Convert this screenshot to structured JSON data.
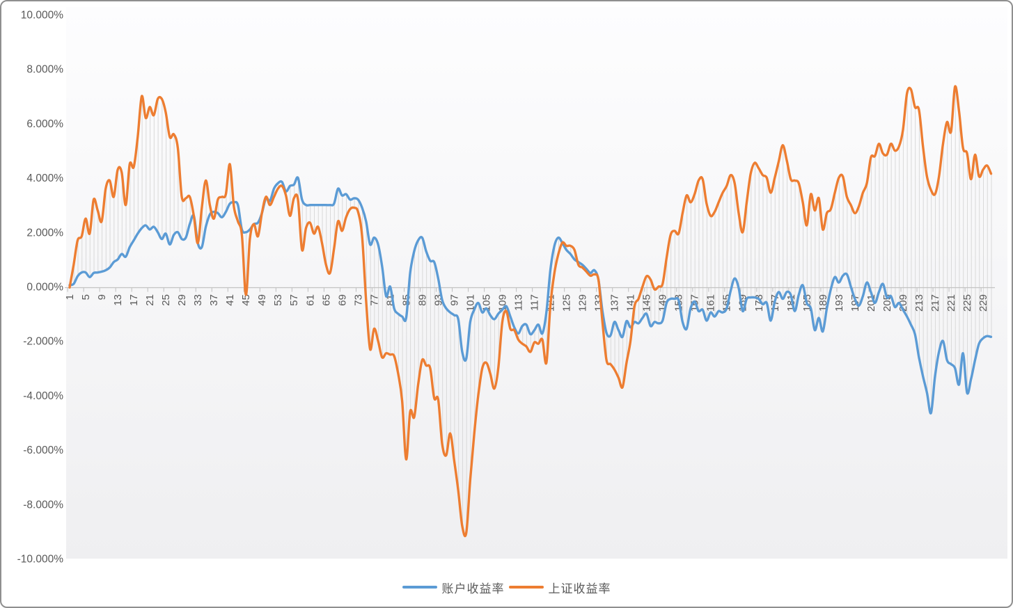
{
  "chart_data": {
    "type": "line",
    "title": "",
    "xlabel": "",
    "ylabel": "",
    "x_tick_labels": [
      "1",
      "5",
      "9",
      "13",
      "17",
      "21",
      "25",
      "29",
      "33",
      "37",
      "41",
      "45",
      "49",
      "53",
      "57",
      "61",
      "65",
      "69",
      "73",
      "77",
      "81",
      "85",
      "89",
      "93",
      "97",
      "101",
      "105",
      "109",
      "113",
      "117",
      "121",
      "125",
      "129",
      "133",
      "137",
      "141",
      "145",
      "149",
      "153",
      "157",
      "161",
      "165",
      "169",
      "173",
      "177",
      "181",
      "185",
      "189",
      "193",
      "197",
      "201",
      "205",
      "209",
      "213",
      "217",
      "221",
      "225",
      "229"
    ],
    "x_label_interval": 4,
    "y_axis": {
      "min": -10,
      "max": 10,
      "step": 2,
      "tick_labels": [
        "10.000%",
        "8.000%",
        "6.000%",
        "4.000%",
        "2.000%",
        "0.000%",
        "-2.000%",
        "-4.000%",
        "-6.000%",
        "-8.000%",
        "-10.000%"
      ],
      "tick_values": [
        10,
        8,
        6,
        4,
        2,
        0,
        -2,
        -4,
        -6,
        -8,
        -10
      ]
    },
    "grid": "high-low-lines-per-category",
    "legend_position": "bottom",
    "smooth_lines": true,
    "series": [
      {
        "name": "账户收益率",
        "color": "#5B9BD5",
        "values": [
          0.05,
          0.1,
          0.38,
          0.52,
          0.52,
          0.35,
          0.5,
          0.52,
          0.55,
          0.6,
          0.7,
          0.9,
          1.0,
          1.2,
          1.1,
          1.45,
          1.7,
          1.95,
          2.15,
          2.25,
          2.1,
          2.2,
          2.0,
          1.75,
          1.95,
          1.55,
          1.9,
          2.0,
          1.75,
          1.8,
          2.3,
          2.6,
          1.6,
          1.45,
          2.2,
          2.65,
          2.75,
          2.7,
          2.55,
          2.75,
          3.05,
          3.1,
          3.0,
          2.1,
          2.0,
          2.1,
          2.3,
          2.35,
          2.7,
          3.25,
          3.15,
          3.6,
          3.8,
          3.85,
          3.5,
          3.7,
          3.75,
          4.0,
          3.2,
          3.0,
          3.0,
          3.0,
          3.0,
          3.0,
          3.0,
          3.0,
          3.05,
          3.6,
          3.35,
          3.4,
          3.2,
          3.25,
          3.2,
          2.9,
          2.4,
          1.55,
          1.8,
          1.55,
          0.75,
          -0.35,
          0.0,
          -0.8,
          -1.0,
          -1.1,
          -1.15,
          0.5,
          1.3,
          1.7,
          1.8,
          1.3,
          0.95,
          0.9,
          0.3,
          -0.5,
          -0.8,
          -0.95,
          -1.05,
          -1.2,
          -2.4,
          -2.65,
          -1.3,
          -0.85,
          -0.6,
          -0.95,
          -0.8,
          -1.05,
          -1.2,
          -1.0,
          -0.85,
          -0.72,
          -1.1,
          -1.5,
          -1.72,
          -1.45,
          -1.4,
          -1.75,
          -1.6,
          -1.4,
          -1.72,
          -0.95,
          0.6,
          1.5,
          1.8,
          1.6,
          1.35,
          1.2,
          1.0,
          0.9,
          0.8,
          0.65,
          0.5,
          0.6,
          0.25,
          -0.9,
          -1.7,
          -1.8,
          -1.3,
          -1.6,
          -1.85,
          -1.27,
          -1.5,
          -1.3,
          -1.35,
          -1.15,
          -1.0,
          -1.45,
          -1.3,
          -1.35,
          -1.25,
          -0.6,
          -0.45,
          -0.45,
          -0.5,
          -1.3,
          -1.55,
          -0.8,
          -0.55,
          -0.9,
          -0.85,
          -1.25,
          -0.95,
          -1.1,
          -0.9,
          -0.95,
          -0.8,
          -0.15,
          0.3,
          -0.05,
          -0.9,
          -0.45,
          -0.4,
          -0.4,
          -0.45,
          -0.65,
          -0.6,
          -1.25,
          -0.55,
          -0.2,
          -0.45,
          -0.2,
          -0.3,
          -0.9,
          -0.3,
          0.05,
          -0.6,
          -0.8,
          -1.6,
          -1.15,
          -1.65,
          -0.8,
          -0.1,
          0.35,
          0.15,
          0.4,
          0.45,
          0.0,
          -0.45,
          -0.7,
          -0.35,
          0.15,
          -0.2,
          -0.6,
          -0.2,
          0.1,
          -0.4,
          -0.35,
          -0.75,
          -0.6,
          -0.85,
          -1.1,
          -1.4,
          -1.75,
          -2.6,
          -3.3,
          -3.9,
          -4.65,
          -3.3,
          -2.4,
          -2.0,
          -2.7,
          -2.85,
          -3.0,
          -3.6,
          -2.45,
          -3.9,
          -3.4,
          -2.7,
          -2.1,
          -1.9,
          -1.82,
          -1.85
        ]
      },
      {
        "name": "上证收益率",
        "color": "#ED7D31",
        "values": [
          -0.03,
          0.8,
          1.7,
          1.85,
          2.5,
          1.95,
          3.2,
          2.8,
          2.4,
          3.6,
          3.9,
          3.3,
          4.3,
          4.2,
          3.0,
          4.5,
          4.4,
          5.5,
          7.0,
          6.2,
          6.6,
          6.3,
          6.9,
          6.9,
          6.4,
          5.5,
          5.6,
          5.1,
          3.3,
          3.25,
          3.3,
          2.6,
          1.6,
          2.9,
          3.9,
          3.0,
          2.5,
          3.2,
          3.3,
          3.4,
          4.5,
          2.95,
          2.4,
          1.9,
          -0.3,
          1.75,
          2.3,
          1.85,
          2.7,
          3.3,
          3.0,
          3.3,
          3.6,
          3.7,
          3.35,
          2.6,
          3.25,
          3.2,
          1.35,
          2.15,
          2.35,
          1.95,
          2.2,
          1.6,
          0.8,
          0.5,
          1.4,
          2.4,
          2.05,
          2.55,
          2.85,
          2.9,
          2.75,
          1.85,
          -0.5,
          -2.3,
          -1.55,
          -2.0,
          -2.6,
          -2.45,
          -2.5,
          -2.55,
          -3.2,
          -4.2,
          -6.35,
          -4.6,
          -4.8,
          -3.6,
          -2.7,
          -2.9,
          -3.0,
          -4.1,
          -4.15,
          -5.8,
          -6.2,
          -5.4,
          -6.4,
          -7.5,
          -8.8,
          -9.05,
          -7.1,
          -5.4,
          -4.0,
          -3.0,
          -2.8,
          -3.2,
          -3.75,
          -3.0,
          -1.3,
          -0.9,
          -1.55,
          -1.6,
          -1.95,
          -2.1,
          -2.2,
          -2.4,
          -2.05,
          -2.1,
          -1.95,
          -2.8,
          -0.7,
          0.5,
          1.2,
          1.62,
          1.5,
          1.5,
          1.35,
          0.8,
          0.7,
          0.55,
          0.4,
          0.45,
          0.25,
          -1.3,
          -2.7,
          -2.85,
          -3.05,
          -3.35,
          -3.7,
          -2.8,
          -2.0,
          -0.72,
          -0.45,
          0.0,
          0.38,
          0.26,
          -0.1,
          0.0,
          0.1,
          1.05,
          1.9,
          2.05,
          1.95,
          2.7,
          3.35,
          3.1,
          3.4,
          3.9,
          3.95,
          3.05,
          2.6,
          2.75,
          3.1,
          3.45,
          3.7,
          4.1,
          3.8,
          2.7,
          2.0,
          3.1,
          4.15,
          4.55,
          4.35,
          4.1,
          4.0,
          3.45,
          4.0,
          4.6,
          5.2,
          4.65,
          3.95,
          3.9,
          3.8,
          3.1,
          2.25,
          3.4,
          2.8,
          3.25,
          2.1,
          2.7,
          2.85,
          3.45,
          4.0,
          4.05,
          3.3,
          3.0,
          2.7,
          2.95,
          3.45,
          3.8,
          4.75,
          4.8,
          5.25,
          4.9,
          4.85,
          5.25,
          5.0,
          5.15,
          5.75,
          7.1,
          7.25,
          6.6,
          6.5,
          5.15,
          4.05,
          3.55,
          3.4,
          4.05,
          5.25,
          6.05,
          5.7,
          7.35,
          6.45,
          5.1,
          4.9,
          3.95,
          4.85,
          4.05,
          4.3,
          4.45,
          4.15
        ]
      }
    ]
  },
  "legend": {
    "items": [
      {
        "label": "账户收益率",
        "color": "#5B9BD5"
      },
      {
        "label": "上证收益率",
        "color": "#ED7D31"
      }
    ]
  },
  "colors": {
    "high_low_line": "#D9D9D9",
    "axis_line": "#C3C3C3",
    "tick_mark": "#BFBFBF",
    "label_text": "#595959",
    "plot_bg_top": "#FDFDFE",
    "plot_bg_bottom": "#EFEFF1",
    "frame_border": "#8F8F8F",
    "page_bg": "#FFFFFF"
  }
}
